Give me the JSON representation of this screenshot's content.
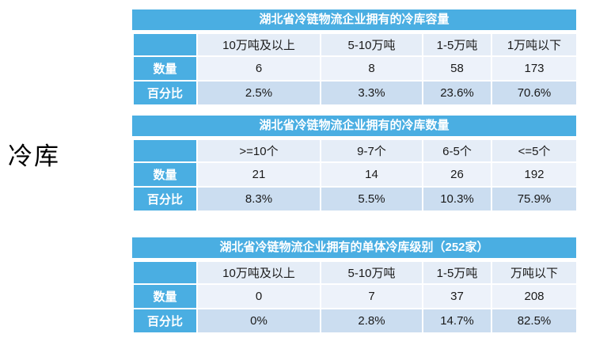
{
  "page": {
    "side_label": "冷库"
  },
  "colors": {
    "header_blue": "#4aaee2",
    "band_header": "#e5edf7",
    "band_qty": "#edf2fa",
    "band_pct": "#cbddf0"
  },
  "tables": [
    {
      "title": "湖北省冷链物流企业拥有的冷库容量",
      "columns": [
        "10万吨及以上",
        "5-10万吨",
        "1-5万吨",
        "1万吨以下"
      ],
      "rows": [
        {
          "label": "数量",
          "values": [
            "6",
            "8",
            "58",
            "173"
          ]
        },
        {
          "label": "百分比",
          "values": [
            "2.5%",
            "3.3%",
            "23.6%",
            "70.6%"
          ]
        }
      ]
    },
    {
      "title": "湖北省冷链物流企业拥有的冷库数量",
      "columns": [
        ">=10个",
        "9-7个",
        "6-5个",
        "<=5个"
      ],
      "rows": [
        {
          "label": "数量",
          "values": [
            "21",
            "14",
            "26",
            "192"
          ]
        },
        {
          "label": "百分比",
          "values": [
            "8.3%",
            "5.5%",
            "10.3%",
            "75.9%"
          ]
        }
      ]
    },
    {
      "title": "湖北省冷链物流企业拥有的单体冷库级别（252家）",
      "columns": [
        "10万吨及以上",
        "5-10万吨",
        "1-5万吨",
        "万吨以下"
      ],
      "rows": [
        {
          "label": "数量",
          "values": [
            "0",
            "7",
            "37",
            "208"
          ]
        },
        {
          "label": "百分比",
          "values": [
            "0%",
            "2.8%",
            "14.7%",
            "82.5%"
          ]
        }
      ]
    }
  ]
}
